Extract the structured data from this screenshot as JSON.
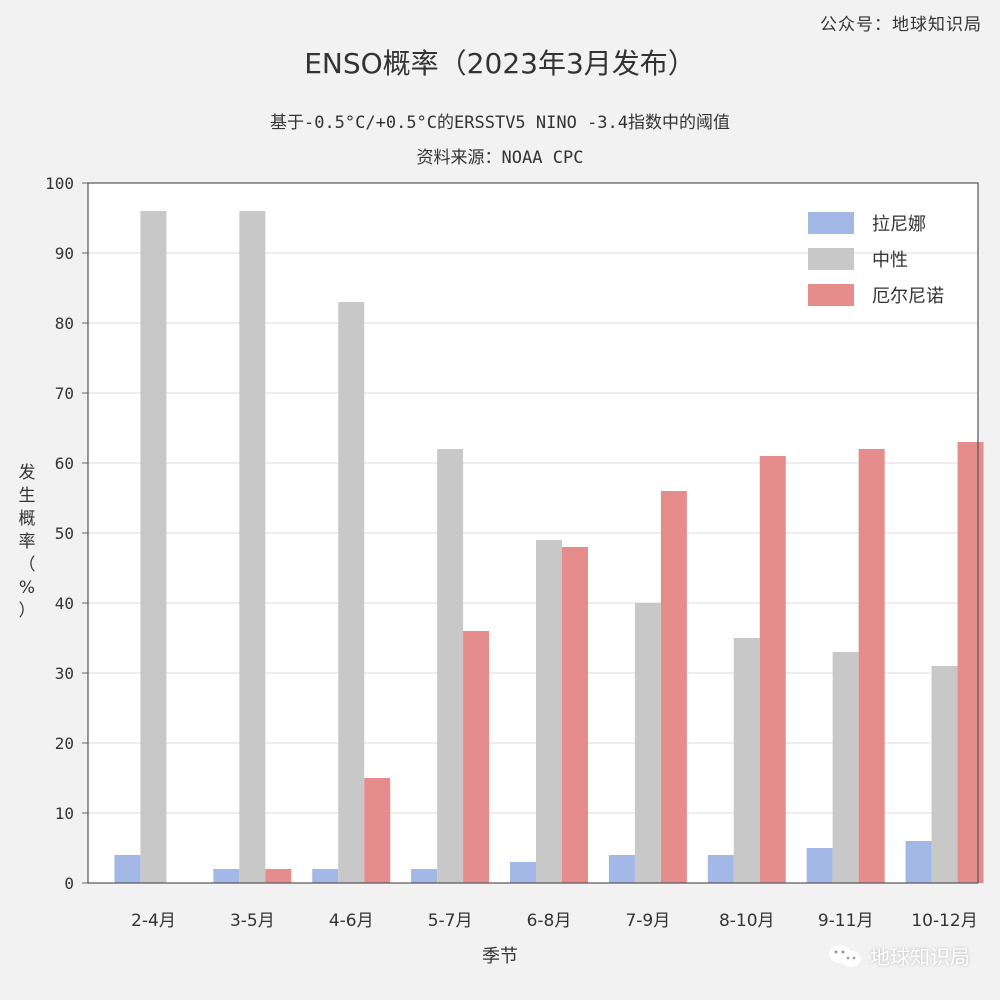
{
  "corner_note": "公众号：地球知识局",
  "brand": {
    "name": "地球知识局"
  },
  "colors": {
    "la_nina": "#a3b8e6",
    "neutral": "#c8c8c8",
    "el_nino": "#e58c8c",
    "plot_bg": "#ffffff",
    "grid": "#dcdcdc"
  },
  "chart_data": {
    "type": "bar",
    "title": "ENSO概率（2023年3月发布）",
    "subtitle_lines": [
      "基于-0.5°C/+0.5°C的ERSSTV5 NINO -3.4指数中的阈值",
      "资料来源：NOAA CPC"
    ],
    "xlabel": "季节",
    "ylabel": "发生概率（%）",
    "ylim": [
      0,
      100
    ],
    "yticks": [
      0,
      10,
      20,
      30,
      40,
      50,
      60,
      70,
      80,
      90,
      100
    ],
    "grid": true,
    "legend_position": "top-right",
    "categories": [
      "2-4月",
      "3-5月",
      "4-6月",
      "5-7月",
      "6-8月",
      "7-9月",
      "8-10月",
      "9-11月",
      "10-12月"
    ],
    "series": [
      {
        "name": "拉尼娜",
        "color": "#a3b8e6",
        "values": [
          4,
          2,
          2,
          2,
          3,
          4,
          4,
          5,
          6
        ]
      },
      {
        "name": "中性",
        "color": "#c8c8c8",
        "values": [
          96,
          96,
          83,
          62,
          49,
          40,
          35,
          33,
          31
        ]
      },
      {
        "name": "厄尔尼诺",
        "color": "#e58c8c",
        "values": [
          0,
          2,
          15,
          36,
          48,
          56,
          61,
          62,
          63
        ]
      }
    ]
  }
}
